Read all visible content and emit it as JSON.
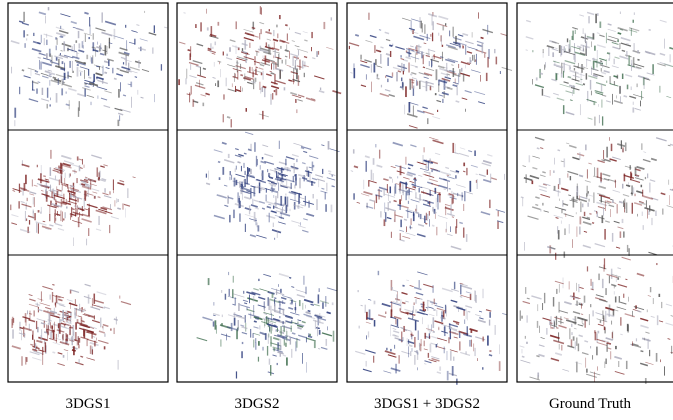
{
  "figure": {
    "captions": [
      "3DGS1",
      "3DGS2",
      "3DGS1 + 3DGS2",
      "Ground Truth"
    ]
  }
}
